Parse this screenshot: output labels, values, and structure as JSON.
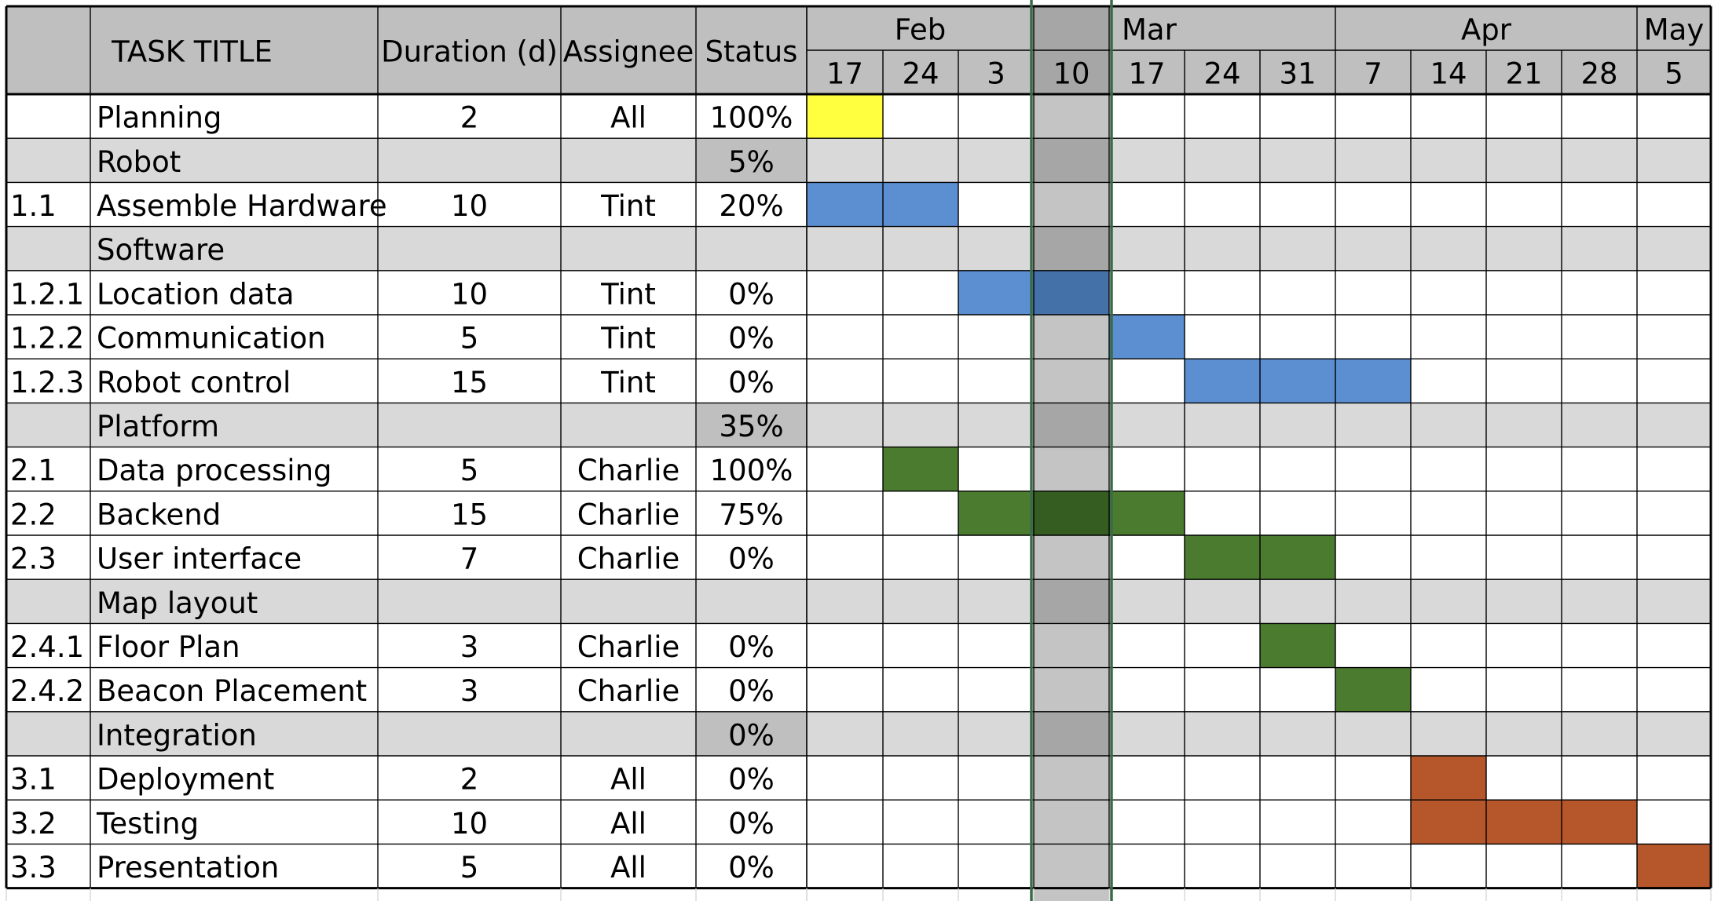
{
  "chart_data": {
    "type": "table",
    "columns": {
      "task_title": "TASK TITLE",
      "duration": "Duration (d)",
      "assignee": "Assignee",
      "status": "Status"
    },
    "months": [
      {
        "label": "Feb",
        "start": 0,
        "span": 3
      },
      {
        "label": "",
        "start": 3,
        "span": 1
      },
      {
        "label": "Mar",
        "start": 4,
        "span": 3
      },
      {
        "label": "Apr",
        "start": 7,
        "span": 4
      },
      {
        "label": "May",
        "start": 11,
        "span": 1
      }
    ],
    "weeks": [
      "17",
      "24",
      "3",
      "10",
      "17",
      "24",
      "31",
      "7",
      "14",
      "21",
      "28",
      "5"
    ],
    "highlight_week": 3,
    "colors": {
      "header_bg": "#bfbfbf",
      "section_bg": "#d9d9d9",
      "highlight_col": "#c4c4c4",
      "highlight_header": "#a6a6a6",
      "highlight_section": "#a6a6a6",
      "separator": "#3a6b48",
      "planning": "#ffff3f",
      "robot": "#5b8fd1",
      "robot_dark": "#4472a8",
      "platform": "#4b7b2f",
      "platform_dark": "#355d21",
      "integration": "#b5562b"
    },
    "rows": [
      {
        "id": "",
        "title": "Planning",
        "duration": "2",
        "assignee": "All",
        "status": "100%",
        "section": false,
        "bars": [
          0
        ],
        "color": "planning"
      },
      {
        "id": "",
        "title": "Robot",
        "duration": "",
        "assignee": "",
        "status": "5%",
        "section": true,
        "status_shade": true,
        "bars": [],
        "color": ""
      },
      {
        "id": "1.1",
        "title": "Assemble Hardware",
        "duration": "10",
        "assignee": "Tint",
        "status": "20%",
        "section": false,
        "bars": [
          0,
          1
        ],
        "color": "robot"
      },
      {
        "id": "",
        "title": "Software",
        "duration": "",
        "assignee": "",
        "status": "",
        "section": true,
        "status_shade": false,
        "bars": [],
        "color": ""
      },
      {
        "id": "1.2.1",
        "title": "Location data",
        "duration": "10",
        "assignee": "Tint",
        "status": "0%",
        "section": false,
        "bars": [
          2,
          3
        ],
        "color": "robot"
      },
      {
        "id": "1.2.2",
        "title": "Communication",
        "duration": "5",
        "assignee": "Tint",
        "status": "0%",
        "section": false,
        "bars": [
          4
        ],
        "color": "robot"
      },
      {
        "id": "1.2.3",
        "title": "Robot control",
        "duration": "15",
        "assignee": "Tint",
        "status": "0%",
        "section": false,
        "bars": [
          5,
          6,
          7
        ],
        "color": "robot"
      },
      {
        "id": "",
        "title": "Platform",
        "duration": "",
        "assignee": "",
        "status": "35%",
        "section": true,
        "status_shade": true,
        "bars": [],
        "color": ""
      },
      {
        "id": "2.1",
        "title": "Data processing",
        "duration": "5",
        "assignee": "Charlie",
        "status": "100%",
        "section": false,
        "bars": [
          1
        ],
        "color": "platform"
      },
      {
        "id": "2.2",
        "title": "Backend",
        "duration": "15",
        "assignee": "Charlie",
        "status": "75%",
        "section": false,
        "bars": [
          2,
          3,
          4
        ],
        "color": "platform"
      },
      {
        "id": "2.3",
        "title": "User interface",
        "duration": "7",
        "assignee": "Charlie",
        "status": "0%",
        "section": false,
        "bars": [
          5,
          6
        ],
        "color": "platform"
      },
      {
        "id": "",
        "title": "Map layout",
        "duration": "",
        "assignee": "",
        "status": "",
        "section": true,
        "status_shade": false,
        "bars": [],
        "color": ""
      },
      {
        "id": "2.4.1",
        "title": "Floor Plan",
        "duration": "3",
        "assignee": "Charlie",
        "status": "0%",
        "section": false,
        "bars": [
          6
        ],
        "color": "platform"
      },
      {
        "id": "2.4.2",
        "title": "Beacon Placement",
        "duration": "3",
        "assignee": "Charlie",
        "status": "0%",
        "section": false,
        "bars": [
          7
        ],
        "color": "platform"
      },
      {
        "id": "",
        "title": "Integration",
        "duration": "",
        "assignee": "",
        "status": "0%",
        "section": true,
        "status_shade": true,
        "bars": [],
        "color": ""
      },
      {
        "id": "3.1",
        "title": "Deployment",
        "duration": "2",
        "assignee": "All",
        "status": "0%",
        "section": false,
        "bars": [
          8
        ],
        "color": "integration"
      },
      {
        "id": "3.2",
        "title": "Testing",
        "duration": "10",
        "assignee": "All",
        "status": "0%",
        "section": false,
        "bars": [
          8,
          9,
          10
        ],
        "color": "integration"
      },
      {
        "id": "3.3",
        "title": "Presentation",
        "duration": "5",
        "assignee": "All",
        "status": "0%",
        "section": false,
        "bars": [
          11
        ],
        "color": "integration"
      }
    ]
  }
}
